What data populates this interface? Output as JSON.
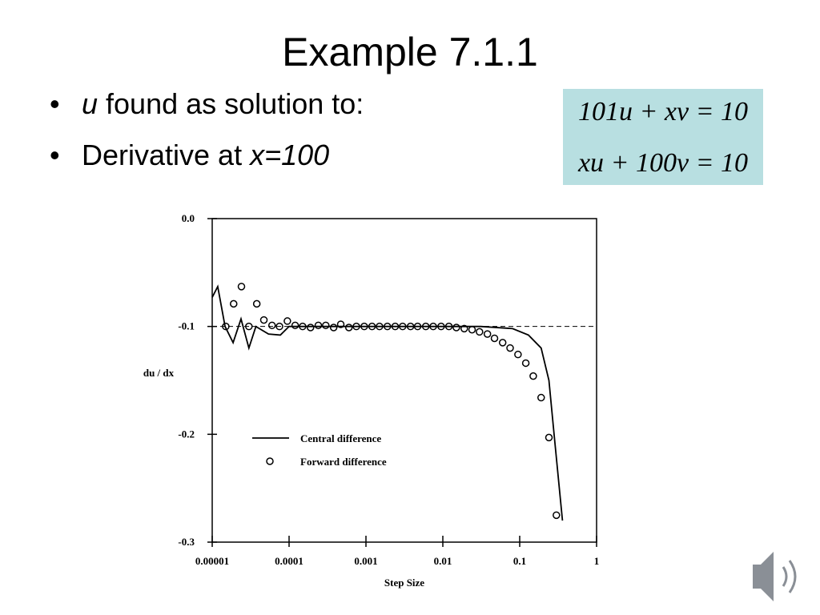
{
  "title": "Example 7.1.1",
  "bullets": [
    [
      "u",
      " found as solution to:"
    ],
    [
      "Derivative at ",
      "x=100"
    ]
  ],
  "equations": [
    "101u + xv = 10",
    "xu + 100v = 10"
  ],
  "chart_data": {
    "type": "line",
    "x_label": "Step Size",
    "y_label": "du / dx",
    "log_x": true,
    "legend": "lower left",
    "reference_line": -0.1,
    "xlim": [
      1e-05,
      1
    ],
    "ylim": [
      -0.3,
      0
    ],
    "xticks": [
      {
        "value": 1e-05,
        "label": "0.00001"
      },
      0.0001,
      0.001,
      0.01,
      0.1,
      1
    ],
    "yticks": [
      {
        "value": 0,
        "label": "0.0"
      },
      -0.1,
      -0.2,
      -0.3
    ],
    "series": [
      {
        "name": "Central difference",
        "type": "line",
        "color": "#000000",
        "x": [
          1e-05,
          1.18e-05,
          1.47e-05,
          1.87e-05,
          2.37e-05,
          3e-05,
          3.7e-05,
          5.4e-05,
          7.7e-05,
          0.0001,
          0.031,
          0.081,
          0.13,
          0.19,
          0.24,
          0.28,
          0.36
        ],
        "values": [
          -0.073,
          -0.063,
          -0.1,
          -0.115,
          -0.093,
          -0.12,
          -0.1,
          -0.107,
          -0.108,
          -0.1,
          -0.1,
          -0.102,
          -0.108,
          -0.12,
          -0.15,
          -0.2,
          -0.28
        ]
      },
      {
        "name": "Forward difference",
        "type": "scatter",
        "color": "#000000",
        "x": [
          1.5e-05,
          1.9e-05,
          2.4e-05,
          3e-05,
          3.8e-05,
          4.7e-05,
          6e-05,
          7.5e-05,
          9.5e-05,
          0.00012,
          0.00015,
          0.00019,
          0.00024,
          0.0003,
          0.00038,
          0.00047,
          0.0006,
          0.00075,
          0.00095,
          0.0012,
          0.0015,
          0.0019,
          0.0024,
          0.003,
          0.0038,
          0.0047,
          0.006,
          0.0075,
          0.0095,
          0.012,
          0.015,
          0.019,
          0.024,
          0.03,
          0.038,
          0.047,
          0.06,
          0.075,
          0.095,
          0.12,
          0.15,
          0.19,
          0.24,
          0.3
        ],
        "values": [
          -0.1,
          -0.079,
          -0.063,
          -0.1,
          -0.079,
          -0.094,
          -0.099,
          -0.1,
          -0.095,
          -0.099,
          -0.1,
          -0.101,
          -0.099,
          -0.099,
          -0.101,
          -0.098,
          -0.101,
          -0.1,
          -0.1,
          -0.1,
          -0.1,
          -0.1,
          -0.1,
          -0.1,
          -0.1,
          -0.1,
          -0.1,
          -0.1,
          -0.1,
          -0.1,
          -0.101,
          -0.102,
          -0.103,
          -0.105,
          -0.107,
          -0.111,
          -0.115,
          -0.12,
          -0.126,
          -0.134,
          -0.146,
          -0.166,
          -0.203,
          -0.275
        ]
      }
    ]
  }
}
